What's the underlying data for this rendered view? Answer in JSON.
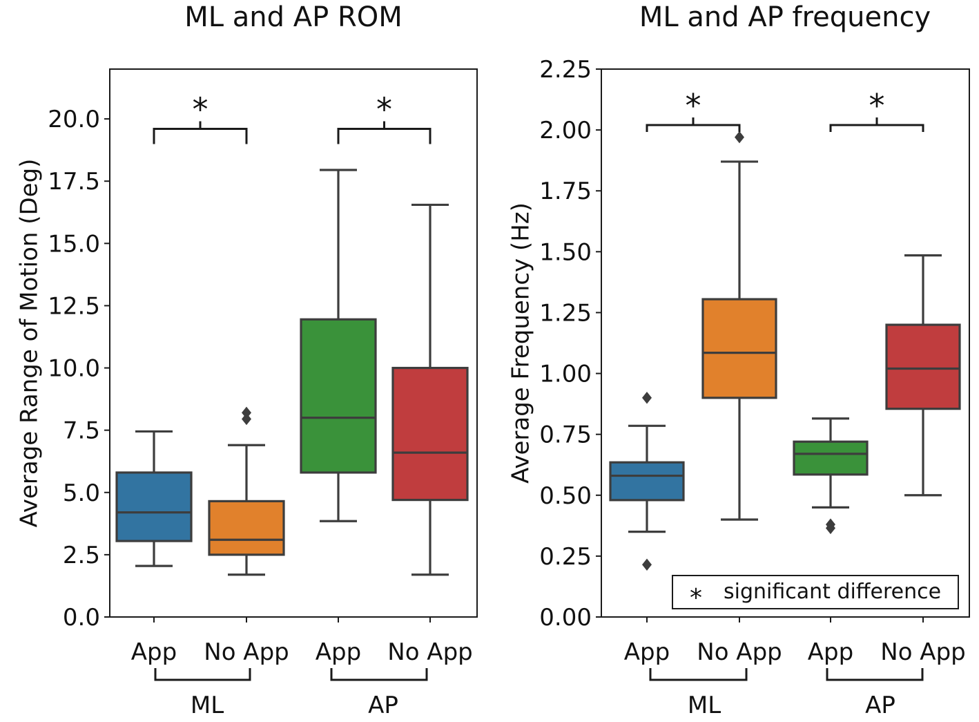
{
  "chart_data": [
    {
      "type": "box",
      "title": "ML and AP ROM",
      "ylabel": "Average Range of Motion (Deg)",
      "xlabel": "",
      "ylim": [
        0,
        22
      ],
      "yticks": [
        0,
        2.5,
        5,
        7.5,
        10,
        12.5,
        15,
        17.5,
        20
      ],
      "ytick_labels": [
        "0.0",
        "2.5",
        "5.0",
        "7.5",
        "10.0",
        "12.5",
        "15.0",
        "17.5",
        "20.0"
      ],
      "categories": [
        "App",
        "No App",
        "App",
        "No App"
      ],
      "groups": [
        {
          "label": "ML",
          "members": [
            0,
            1
          ]
        },
        {
          "label": "AP",
          "members": [
            2,
            3
          ]
        }
      ],
      "boxes": [
        {
          "label": "App",
          "color": "#3274a1",
          "whisker_low": 2.05,
          "q1": 3.05,
          "median": 4.2,
          "q3": 5.8,
          "whisker_high": 7.45,
          "outliers": []
        },
        {
          "label": "No App",
          "color": "#e1812c",
          "whisker_low": 1.7,
          "q1": 2.5,
          "median": 3.1,
          "q3": 4.65,
          "whisker_high": 6.9,
          "outliers": [
            7.95,
            8.2
          ]
        },
        {
          "label": "App",
          "color": "#3a923a",
          "whisker_low": 3.85,
          "q1": 5.8,
          "median": 8.0,
          "q3": 11.95,
          "whisker_high": 17.95,
          "outliers": []
        },
        {
          "label": "No App",
          "color": "#c03d3e",
          "whisker_low": 1.7,
          "q1": 4.7,
          "median": 6.6,
          "q3": 10.0,
          "whisker_high": 16.55,
          "outliers": []
        }
      ],
      "significance": [
        {
          "between": [
            0,
            1
          ],
          "y": 19.6,
          "marker": "*"
        },
        {
          "between": [
            2,
            3
          ],
          "y": 19.6,
          "marker": "*"
        }
      ]
    },
    {
      "type": "box",
      "title": "ML and AP frequency",
      "ylabel": "Average Frequency (Hz)",
      "xlabel": "",
      "ylim": [
        0,
        2.25
      ],
      "yticks": [
        0,
        0.25,
        0.5,
        0.75,
        1.0,
        1.25,
        1.5,
        1.75,
        2.0,
        2.25
      ],
      "ytick_labels": [
        "0.00",
        "0.25",
        "0.50",
        "0.75",
        "1.00",
        "1.25",
        "1.50",
        "1.75",
        "2.00",
        "2.25"
      ],
      "categories": [
        "App",
        "No App",
        "App",
        "No App"
      ],
      "groups": [
        {
          "label": "ML",
          "members": [
            0,
            1
          ]
        },
        {
          "label": "AP",
          "members": [
            2,
            3
          ]
        }
      ],
      "boxes": [
        {
          "label": "App",
          "color": "#3274a1",
          "whisker_low": 0.35,
          "q1": 0.48,
          "median": 0.58,
          "q3": 0.635,
          "whisker_high": 0.785,
          "outliers": [
            0.9,
            0.215
          ]
        },
        {
          "label": "No App",
          "color": "#e1812c",
          "whisker_low": 0.4,
          "q1": 0.9,
          "median": 1.085,
          "q3": 1.305,
          "whisker_high": 1.87,
          "outliers": [
            1.97
          ]
        },
        {
          "label": "App",
          "color": "#3a923a",
          "whisker_low": 0.45,
          "q1": 0.585,
          "median": 0.67,
          "q3": 0.72,
          "whisker_high": 0.815,
          "outliers": [
            0.365,
            0.38
          ]
        },
        {
          "label": "No App",
          "color": "#c03d3e",
          "whisker_low": 0.5,
          "q1": 0.855,
          "median": 1.02,
          "q3": 1.2,
          "whisker_high": 1.485,
          "outliers": []
        }
      ],
      "significance": [
        {
          "between": [
            0,
            1
          ],
          "y": 2.02,
          "marker": "*"
        },
        {
          "between": [
            2,
            3
          ],
          "y": 2.02,
          "marker": "*"
        }
      ],
      "legend": {
        "marker": "*",
        "text": "significant difference",
        "placement": "bottom-right"
      }
    }
  ]
}
